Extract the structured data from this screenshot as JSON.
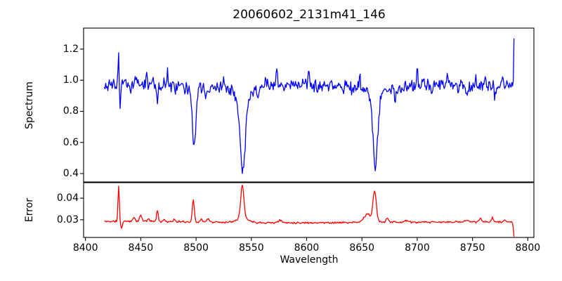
{
  "chart_data": {
    "type": "line",
    "title": "20060602_2131m41_146",
    "xlabel": "Wavelength",
    "xlim": [
      8398.3,
      8805.5
    ],
    "x_ticks": [
      {
        "v": 8400,
        "label": "8400"
      },
      {
        "v": 8450,
        "label": "8450"
      },
      {
        "v": 8500,
        "label": "8500"
      },
      {
        "v": 8550,
        "label": "8550"
      },
      {
        "v": 8600,
        "label": "8600"
      },
      {
        "v": 8650,
        "label": "8650"
      },
      {
        "v": 8700,
        "label": "8700"
      },
      {
        "v": 8750,
        "label": "8750"
      },
      {
        "v": 8800,
        "label": "8800"
      }
    ],
    "x_start": 8417,
    "x_step": 0.65,
    "n_points": 571,
    "grid": false,
    "legend": false,
    "panels": [
      {
        "name": "spectrum",
        "ylabel": "Spectrum",
        "line_color": "#0000ff",
        "ylim": [
          0.346,
          1.335
        ],
        "y_ticks": [
          {
            "v": 0.4,
            "label": "0.4"
          },
          {
            "v": 0.6,
            "label": "0.6"
          },
          {
            "v": 0.8,
            "label": "0.8"
          },
          {
            "v": 1.0,
            "label": "1.0"
          },
          {
            "v": 1.2,
            "label": "1.2"
          }
        ],
        "continuum_keypoints": [
          [
            8417,
            0.968
          ],
          [
            8445,
            0.975
          ],
          [
            8470,
            0.972
          ],
          [
            8490,
            0.965
          ],
          [
            8515,
            0.952
          ],
          [
            8530,
            0.965
          ],
          [
            8560,
            0.962
          ],
          [
            8590,
            0.975
          ],
          [
            8615,
            0.965
          ],
          [
            8640,
            0.962
          ],
          [
            8680,
            0.955
          ],
          [
            8690,
            0.962
          ],
          [
            8715,
            0.972
          ],
          [
            8740,
            0.962
          ],
          [
            8770,
            0.965
          ],
          [
            8788,
            0.955
          ]
        ],
        "features_gaussian": [
          [
            8430.0,
            0.2,
            0.45
          ],
          [
            8431.3,
            -0.175,
            0.45
          ],
          [
            8441,
            -0.055,
            0.7
          ],
          [
            8455,
            0.065,
            0.6
          ],
          [
            8461,
            0.05,
            0.5
          ],
          [
            8465,
            -0.09,
            0.8
          ],
          [
            8474,
            0.1,
            0.5
          ],
          [
            8481,
            -0.06,
            0.6
          ],
          [
            8490,
            -0.05,
            0.6
          ],
          [
            8498.2,
            -0.36,
            1.4
          ],
          [
            8498.2,
            -0.05,
            4.0
          ],
          [
            8509,
            -0.05,
            0.8
          ],
          [
            8516,
            -0.04,
            0.7
          ],
          [
            8525,
            0.06,
            0.5
          ],
          [
            8533,
            0.05,
            0.6
          ],
          [
            8542.3,
            -0.47,
            2.2
          ],
          [
            8542.3,
            -0.09,
            7.0
          ],
          [
            8556,
            -0.045,
            0.7
          ],
          [
            8563,
            0.05,
            0.5
          ],
          [
            8573,
            0.115,
            0.5
          ],
          [
            8585,
            -0.04,
            0.6
          ],
          [
            8602,
            0.095,
            0.5
          ],
          [
            8610,
            -0.05,
            0.7
          ],
          [
            8622,
            0.05,
            0.5
          ],
          [
            8633,
            -0.045,
            0.6
          ],
          [
            8641,
            -0.055,
            0.6
          ],
          [
            8648,
            0.06,
            0.5
          ],
          [
            8662.1,
            -0.46,
            2.0
          ],
          [
            8662.1,
            -0.075,
            6.0
          ],
          [
            8680,
            -0.065,
            0.7
          ],
          [
            8700,
            0.125,
            0.5
          ],
          [
            8713,
            -0.05,
            0.6
          ],
          [
            8727,
            0.07,
            0.5
          ],
          [
            8737,
            -0.05,
            0.6
          ],
          [
            8745,
            -0.055,
            0.6
          ],
          [
            8753,
            0.06,
            0.5
          ],
          [
            8762,
            0.08,
            0.5
          ],
          [
            8770,
            -0.05,
            0.6
          ],
          [
            8777,
            0.05,
            0.5
          ],
          [
            8787.5,
            0.33,
            0.35
          ]
        ],
        "noise_amplitude": 0.05,
        "noise_seed": 3,
        "absorption_line_centers": [
          8498,
          8542,
          8662
        ],
        "absorption_line_depths": [
          0.58,
          0.4,
          0.43
        ],
        "edge_spike_value": 1.28
      },
      {
        "name": "error",
        "ylabel": "Error",
        "line_color": "#ff0000",
        "ylim": [
          0.0218,
          0.0472
        ],
        "y_ticks": [
          {
            "v": 0.03,
            "label": "0.03"
          },
          {
            "v": 0.04,
            "label": "0.04"
          }
        ],
        "continuum_keypoints": [
          [
            8417,
            0.0292
          ],
          [
            8450,
            0.0294
          ],
          [
            8480,
            0.0291
          ],
          [
            8520,
            0.0289
          ],
          [
            8555,
            0.0287
          ],
          [
            8600,
            0.0286
          ],
          [
            8640,
            0.0287
          ],
          [
            8665,
            0.029
          ],
          [
            8700,
            0.0288
          ],
          [
            8745,
            0.029
          ],
          [
            8788,
            0.0289
          ]
        ],
        "features_gaussian": [
          [
            8430.0,
            0.0163,
            0.6
          ],
          [
            8432.6,
            -0.0033,
            0.7
          ],
          [
            8444,
            0.0018,
            0.9
          ],
          [
            8450,
            0.0028,
            0.9
          ],
          [
            8457,
            0.0012,
            0.8
          ],
          [
            8465,
            0.0047,
            0.8
          ],
          [
            8471,
            0.001,
            0.8
          ],
          [
            8480,
            0.001,
            0.9
          ],
          [
            8497.5,
            0.0102,
            0.9
          ],
          [
            8505,
            0.0012,
            1.0
          ],
          [
            8511,
            0.0016,
            1.0
          ],
          [
            8541.8,
            0.015,
            1.4
          ],
          [
            8541.8,
            0.0022,
            5.0
          ],
          [
            8576,
            0.0011,
            1.5
          ],
          [
            8655,
            0.0038,
            3.0
          ],
          [
            8661.5,
            0.014,
            1.5
          ],
          [
            8673,
            0.002,
            1.1
          ],
          [
            8690,
            0.0008,
            1.5
          ],
          [
            8745,
            0.0011,
            1.5
          ],
          [
            8757,
            0.0016,
            1.0
          ],
          [
            8768,
            0.0023,
            0.9
          ],
          [
            8779,
            0.0012,
            0.9
          ],
          [
            8787.5,
            -0.0066,
            0.5
          ]
        ],
        "noise_amplitude": 0.00055,
        "noise_seed": 11,
        "baseline_value": 0.029,
        "peak_values": [
          0.046,
          0.04,
          0.046,
          0.046
        ],
        "edge_drop_value": 0.022
      }
    ]
  },
  "colors": {
    "spine": "#000000",
    "text": "#000000",
    "background": "#ffffff",
    "spectrum_line": "#0000ff",
    "error_line": "#ff0000"
  }
}
